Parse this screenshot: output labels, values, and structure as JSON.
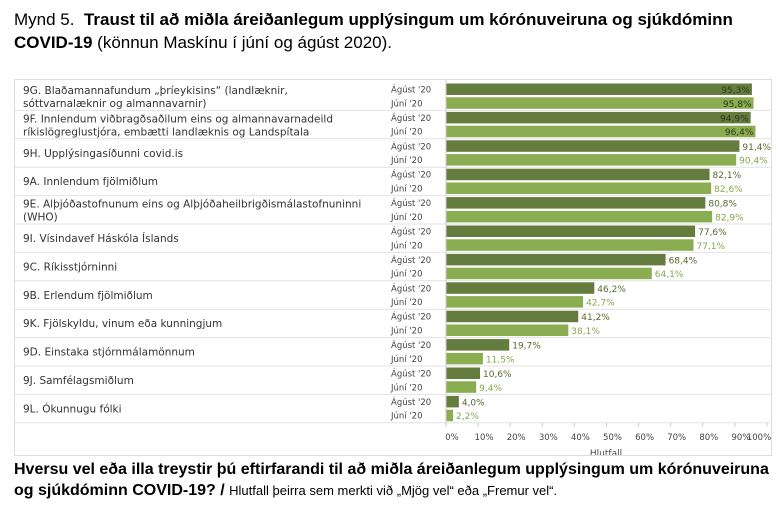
{
  "figure": {
    "label": "Mynd 5.",
    "title": "Traust til að miðla áreiðanlegum upplýsingum um kórónuveiruna og sjúkdóminn COVID-19",
    "subtitle": "(könnun Maskínu í júní og ágúst 2020)."
  },
  "question": {
    "text": "Hversu vel eða illa treystir þú eftirfarandi til að miðla áreiðanlegum upplýsingum um kórónuveiruna og sjúkdóminn COVID-19?",
    "separator": "/",
    "note": "Hlutfall þeirra sem merkti við „Mjög vel“ eða „Fremur vel“."
  },
  "chart_data": {
    "type": "bar",
    "orientation": "horizontal",
    "xlabel": "Hlutfall",
    "xlim": [
      0,
      100
    ],
    "xticks": [
      "0%",
      "10%",
      "20%",
      "30%",
      "40%",
      "50%",
      "60%",
      "70%",
      "80%",
      "90%",
      "100%"
    ],
    "grid": false,
    "categories": [
      "9G. Blaðamannafundum „þríeykisins“ (landlæknir, sóttvarnalæknir og almannavarnir)",
      "9F. Innlendum viðbragðsaðilum eins og almannavarnadeild ríkislögreglustjóra, embætti landlæknis og Landspítala",
      "9H. Upplýsingasíðunni covid.is",
      "9A. Innlendum fjölmiðlum",
      "9E. Alþjóðastofnunum eins og Alþjóðaheilbrigðismálastofnuninni (WHO)",
      "9I. Vísindavef Háskóla Íslands",
      "9C. Ríkisstjórninni",
      "9B. Erlendum fjölmiðlum",
      "9K. Fjölskyldu, vinum eða kunningjum",
      "9D. Einstaka stjórnmálamönnum",
      "9J. Samfélagsmiðlum",
      "9L. Ókunnugu fólki"
    ],
    "series": [
      {
        "name": "Ágúst '20",
        "color": "#647c3e",
        "label_color": "#56692f",
        "values": [
          95.3,
          94.9,
          91.4,
          82.1,
          80.8,
          77.6,
          68.4,
          46.2,
          41.2,
          19.7,
          10.6,
          4.0
        ],
        "labels": [
          "95,3%",
          "94,9%",
          "91,4%",
          "82,1%",
          "80,8%",
          "77,6%",
          "68,4%",
          "46,2%",
          "41,2%",
          "19,7%",
          "10,6%",
          "4,0%"
        ]
      },
      {
        "name": "Júní '20",
        "color": "#8aad52",
        "label_color": "#86a84e",
        "values": [
          95.8,
          96.4,
          90.4,
          82.6,
          82.9,
          77.1,
          64.1,
          42.7,
          38.1,
          11.5,
          9.4,
          2.2
        ],
        "labels": [
          "95,8%",
          "96,4%",
          "90,4%",
          "82,6%",
          "82,9%",
          "77,1%",
          "64,1%",
          "42,7%",
          "38,1%",
          "11,5%",
          "9,4%",
          "2,2%"
        ]
      }
    ]
  }
}
